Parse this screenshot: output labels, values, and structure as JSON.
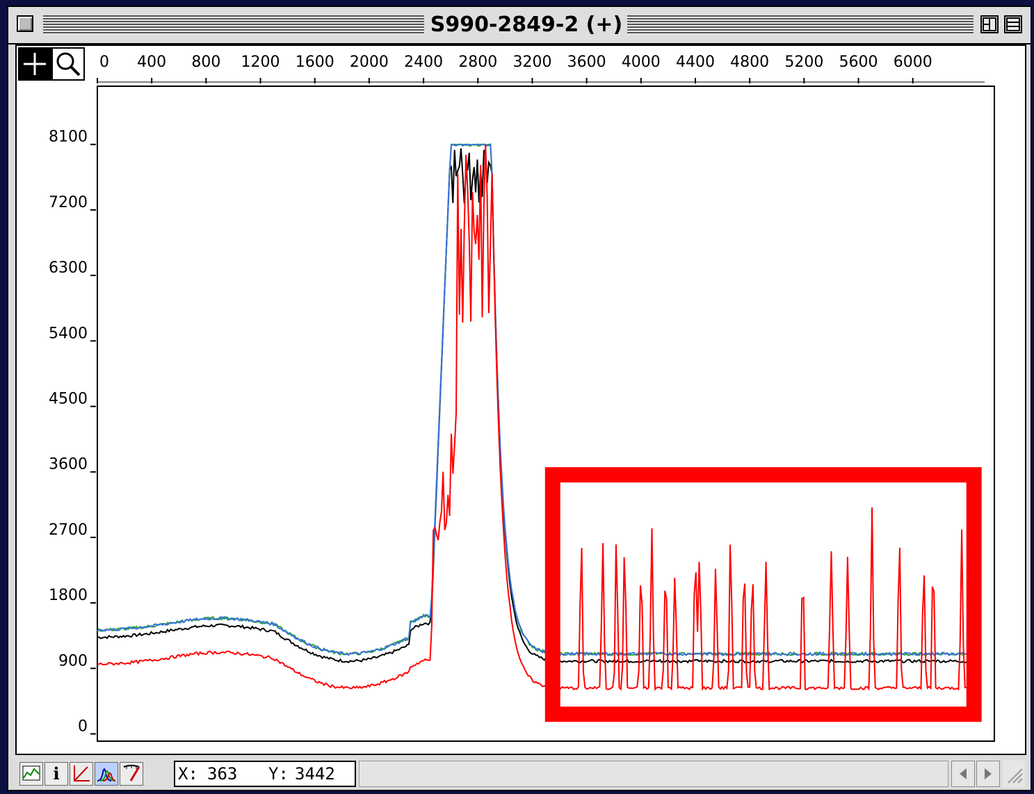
{
  "window": {
    "title": "S990-2849-2 (+)"
  },
  "toolbar": {
    "crosshair_icon": "crosshair-icon",
    "zoom_icon": "magnifier-icon"
  },
  "status": {
    "x_label": "X:",
    "x_value": "363",
    "y_label": "Y:",
    "y_value": "3442"
  },
  "chart_data": {
    "type": "line",
    "x_ticks": [
      "0",
      "400",
      "800",
      "1200",
      "1600",
      "2000",
      "2400",
      "2800",
      "3200",
      "3600",
      "4000",
      "4400",
      "4800",
      "5200",
      "5600",
      "6000"
    ],
    "y_ticks": [
      "8100",
      "7200",
      "6300",
      "5400",
      "4500",
      "3600",
      "2700",
      "1800",
      "900",
      "0"
    ],
    "xlim": [
      0,
      6600
    ],
    "ylim": [
      -100,
      8900
    ],
    "colors": {
      "black": "#000000",
      "green": "#22aa22",
      "blue": "#3b6fe0",
      "red": "#ff0000",
      "highlight": "#ff0000"
    },
    "series": [
      {
        "color": "black",
        "baseline": 1320
      },
      {
        "color": "green",
        "baseline": 1420
      },
      {
        "color": "blue",
        "baseline": 1420
      },
      {
        "color": "red",
        "baseline": 950
      }
    ],
    "highlight_box": {
      "x": [
        3350,
        6450
      ],
      "y": [
        270,
        3560
      ]
    }
  }
}
